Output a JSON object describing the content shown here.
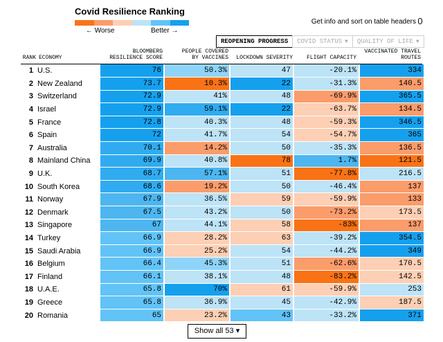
{
  "legend": {
    "title": "Covid Resilience Ranking",
    "worse_label": "← Worse",
    "better_label": "Better →",
    "scale_colors": [
      "#f97316",
      "#fb9c6b",
      "#fdcfb4",
      "#bde3f7",
      "#62c3f7",
      "#15a0ee"
    ]
  },
  "hint": {
    "text": "Get info and sort on table headers",
    "icon": "pointer-icon"
  },
  "tabs": [
    {
      "label": "REOPENING PROGRESS",
      "active": true
    },
    {
      "label": "COVID STATUS",
      "active": false,
      "caret": "▼"
    },
    {
      "label": "QUALITY OF LIFE",
      "active": false,
      "caret": "▼"
    }
  ],
  "headers": {
    "rank": "RANK",
    "economy": "ECONOMY",
    "score_line1": "BLOOMBERG",
    "score_line2": "RESILIENCE SCORE",
    "vaccines_line1": "PEOPLE COVERED",
    "vaccines_line2": "BY VACCINES",
    "lockdown": "LOCKDOWN SEVERITY",
    "flight": "FLIGHT CAPACITY",
    "routes_line1": "VACCINATED TRAVEL",
    "routes_line2": "ROUTES"
  },
  "rows": [
    {
      "rank": "1",
      "economy": "U.S.",
      "score": "76",
      "vaccines": "50.3%",
      "lockdown": "47",
      "flight": "-20.1%",
      "routes": "334"
    },
    {
      "rank": "2",
      "economy": "New Zealand",
      "score": "73.7",
      "vaccines": "10.3%",
      "lockdown": "22",
      "flight": "-31.3%",
      "routes": "140.5"
    },
    {
      "rank": "3",
      "economy": "Switzerland",
      "score": "72.9",
      "vaccines": "41%",
      "lockdown": "48",
      "flight": "-69.9%",
      "routes": "365.5"
    },
    {
      "rank": "4",
      "economy": "Israel",
      "score": "72.9",
      "vaccines": "59.1%",
      "lockdown": "22",
      "flight": "-63.7%",
      "routes": "134.5"
    },
    {
      "rank": "5",
      "economy": "France",
      "score": "72.8",
      "vaccines": "40.3%",
      "lockdown": "48",
      "flight": "-59.3%",
      "routes": "346.5"
    },
    {
      "rank": "6",
      "economy": "Spain",
      "score": "72",
      "vaccines": "41.7%",
      "lockdown": "54",
      "flight": "-54.7%",
      "routes": "365"
    },
    {
      "rank": "7",
      "economy": "Australia",
      "score": "70.1",
      "vaccines": "14.2%",
      "lockdown": "50",
      "flight": "-35.3%",
      "routes": "136.5"
    },
    {
      "rank": "8",
      "economy": "Mainland China",
      "score": "69.9",
      "vaccines": "40.8%",
      "lockdown": "78",
      "flight": "1.7%",
      "routes": "121.5"
    },
    {
      "rank": "9",
      "economy": "U.K.",
      "score": "68.7",
      "vaccines": "57.1%",
      "lockdown": "51",
      "flight": "-77.8%",
      "routes": "216.5"
    },
    {
      "rank": "10",
      "economy": "South Korea",
      "score": "68.6",
      "vaccines": "19.2%",
      "lockdown": "50",
      "flight": "-46.4%",
      "routes": "137"
    },
    {
      "rank": "11",
      "economy": "Norway",
      "score": "67.9",
      "vaccines": "36.5%",
      "lockdown": "59",
      "flight": "-59.9%",
      "routes": "133"
    },
    {
      "rank": "12",
      "economy": "Denmark",
      "score": "67.5",
      "vaccines": "43.2%",
      "lockdown": "50",
      "flight": "-73.2%",
      "routes": "173.5"
    },
    {
      "rank": "13",
      "economy": "Singapore",
      "score": "67",
      "vaccines": "44.1%",
      "lockdown": "58",
      "flight": "-83%",
      "routes": "137"
    },
    {
      "rank": "14",
      "economy": "Turkey",
      "score": "66.9",
      "vaccines": "28.2%",
      "lockdown": "63",
      "flight": "-39.2%",
      "routes": "354.5"
    },
    {
      "rank": "15",
      "economy": "Saudi Arabia",
      "score": "66.9",
      "vaccines": "25.2%",
      "lockdown": "54",
      "flight": "-44.2%",
      "routes": "349"
    },
    {
      "rank": "16",
      "economy": "Belgium",
      "score": "66.4",
      "vaccines": "45.3%",
      "lockdown": "51",
      "flight": "-62.6%",
      "routes": "170.5"
    },
    {
      "rank": "17",
      "economy": "Finland",
      "score": "66.1",
      "vaccines": "38.1%",
      "lockdown": "48",
      "flight": "-83.2%",
      "routes": "142.5"
    },
    {
      "rank": "18",
      "economy": "U.A.E.",
      "score": "65.8",
      "vaccines": "70%",
      "lockdown": "61",
      "flight": "-59.9%",
      "routes": "253"
    },
    {
      "rank": "19",
      "economy": "Greece",
      "score": "65.8",
      "vaccines": "36.9%",
      "lockdown": "45",
      "flight": "-42.9%",
      "routes": "187.5"
    },
    {
      "rank": "20",
      "economy": "Romania",
      "score": "65",
      "vaccines": "23.2%",
      "lockdown": "43",
      "flight": "-33.2%",
      "routes": "371"
    }
  ],
  "colors": {
    "score": [
      "#15a0ee",
      "#15a0ee",
      "#15a0ee",
      "#15a0ee",
      "#15a0ee",
      "#15a0ee",
      "#30abef",
      "#30abef",
      "#30abef",
      "#30abef",
      "#4db6f0",
      "#4db6f0",
      "#4db6f0",
      "#62c3f7",
      "#62c3f7",
      "#62c3f7",
      "#62c3f7",
      "#62c3f7",
      "#62c3f7",
      "#62c3f7"
    ],
    "vaccines": [
      "#8fd4f8",
      "#f97316",
      "#bde3f7",
      "#30abef",
      "#bde3f7",
      "#bde3f7",
      "#fb9c6b",
      "#bde3f7",
      "#4db6f0",
      "#fb9c6b",
      "#bde3f7",
      "#bde3f7",
      "#bde3f7",
      "#fdcfb4",
      "#fdcfb4",
      "#8fd4f8",
      "#bde3f7",
      "#15a0ee",
      "#bde3f7",
      "#fdcfb4"
    ],
    "lockdown": [
      "#bde3f7",
      "#15a0ee",
      "#bde3f7",
      "#15a0ee",
      "#bde3f7",
      "#bde3f7",
      "#bde3f7",
      "#f97316",
      "#bde3f7",
      "#bde3f7",
      "#fdcfb4",
      "#bde3f7",
      "#fdcfb4",
      "#fdcfb4",
      "#bde3f7",
      "#bde3f7",
      "#bde3f7",
      "#fdcfb4",
      "#bde3f7",
      "#62c3f7"
    ],
    "flight": [
      "#bde3f7",
      "#bde3f7",
      "#fb9c6b",
      "#fdcfb4",
      "#fdcfb4",
      "#fdcfb4",
      "#bde3f7",
      "#4db6f0",
      "#f97316",
      "#bde3f7",
      "#fdcfb4",
      "#fb9c6b",
      "#f97316",
      "#bde3f7",
      "#bde3f7",
      "#fb9c6b",
      "#f97316",
      "#fdcfb4",
      "#bde3f7",
      "#bde3f7"
    ],
    "routes": [
      "#15a0ee",
      "#fb9c6b",
      "#15a0ee",
      "#fb9c6b",
      "#15a0ee",
      "#15a0ee",
      "#fb9c6b",
      "#f97316",
      "#bde3f7",
      "#fb9c6b",
      "#fb9c6b",
      "#fdcfb4",
      "#fb9c6b",
      "#15a0ee",
      "#15a0ee",
      "#fdcfb4",
      "#fdcfb4",
      "#bde3f7",
      "#fdcfb4",
      "#15a0ee"
    ]
  },
  "show_all": {
    "label": "Show all 53 ▾"
  }
}
